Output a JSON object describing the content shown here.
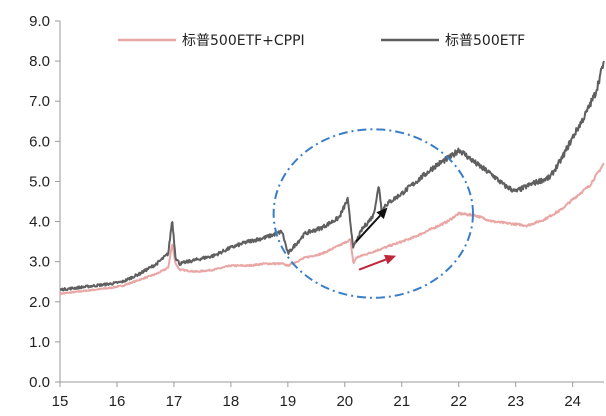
{
  "chart_data": {
    "type": "line",
    "title": "",
    "xlabel": "",
    "ylabel": "",
    "xlim": [
      15,
      24.55
    ],
    "ylim": [
      0,
      9
    ],
    "grid": false,
    "legend_position": "top",
    "x_tick_labels": [
      "15",
      "16",
      "17",
      "18",
      "19",
      "20",
      "21",
      "22",
      "23",
      "24"
    ],
    "x_tick_values": [
      15,
      16,
      17,
      18,
      19,
      20,
      21,
      22,
      23,
      24
    ],
    "y_tick_labels": [
      "0.0",
      "1.0",
      "2.0",
      "3.0",
      "4.0",
      "5.0",
      "6.0",
      "7.0",
      "8.0",
      "9.0"
    ],
    "y_tick_values": [
      0,
      1,
      2,
      3,
      4,
      5,
      6,
      7,
      8,
      9
    ],
    "series": [
      {
        "name": "标普500ETF+CPPI",
        "color": "#e8a6a4",
        "x": [
          15.0,
          15.3,
          15.6,
          15.9,
          16.1,
          16.4,
          16.7,
          16.9,
          16.97,
          17.03,
          17.1,
          17.4,
          17.7,
          18.0,
          18.3,
          18.6,
          18.9,
          19.0,
          19.3,
          19.6,
          19.9,
          20.1,
          20.15,
          20.2,
          20.5,
          20.7,
          20.9,
          21.2,
          21.5,
          21.8,
          22.0,
          22.3,
          22.6,
          22.9,
          23.2,
          23.5,
          23.8,
          24.0,
          24.3,
          24.55
        ],
        "values": [
          2.2,
          2.25,
          2.3,
          2.35,
          2.4,
          2.55,
          2.7,
          2.85,
          3.45,
          2.95,
          2.8,
          2.75,
          2.8,
          2.9,
          2.9,
          2.95,
          2.95,
          2.9,
          3.1,
          3.2,
          3.4,
          3.55,
          2.95,
          3.1,
          3.25,
          3.35,
          3.45,
          3.6,
          3.8,
          4.0,
          4.2,
          4.15,
          4.0,
          3.95,
          3.9,
          4.05,
          4.3,
          4.55,
          4.9,
          5.45
        ]
      },
      {
        "name": "标普500ETF",
        "color": "#5f5f5f",
        "x": [
          15.0,
          15.3,
          15.6,
          15.9,
          16.1,
          16.4,
          16.7,
          16.9,
          16.97,
          17.03,
          17.1,
          17.4,
          17.7,
          18.0,
          18.3,
          18.6,
          18.9,
          19.0,
          19.3,
          19.6,
          19.9,
          20.05,
          20.15,
          20.3,
          20.5,
          20.6,
          20.65,
          20.7,
          21.0,
          21.3,
          21.6,
          21.9,
          22.0,
          22.3,
          22.6,
          22.8,
          23.0,
          23.3,
          23.6,
          23.8,
          24.0,
          24.2,
          24.4,
          24.55
        ],
        "values": [
          2.3,
          2.35,
          2.4,
          2.45,
          2.5,
          2.7,
          2.95,
          3.2,
          4.05,
          3.1,
          2.95,
          3.05,
          3.15,
          3.35,
          3.5,
          3.6,
          3.75,
          3.2,
          3.7,
          3.85,
          4.1,
          4.55,
          3.35,
          3.8,
          4.15,
          4.9,
          4.2,
          4.4,
          4.7,
          5.05,
          5.4,
          5.65,
          5.8,
          5.45,
          5.15,
          4.9,
          4.75,
          4.95,
          5.1,
          5.55,
          6.1,
          6.6,
          7.2,
          8.0
        ]
      }
    ],
    "annotations": {
      "ellipse_center": [
        20.5,
        4.2
      ],
      "ellipse_radius": [
        1.75,
        2.1
      ],
      "ellipse_color": "#3a7ec8",
      "arrows": [
        {
          "color": "#111111",
          "from": [
            20.2,
            3.5
          ],
          "to": [
            20.75,
            4.35
          ]
        },
        {
          "color": "#c0263a",
          "from": [
            20.25,
            2.8
          ],
          "to": [
            20.9,
            3.15
          ]
        }
      ]
    }
  }
}
